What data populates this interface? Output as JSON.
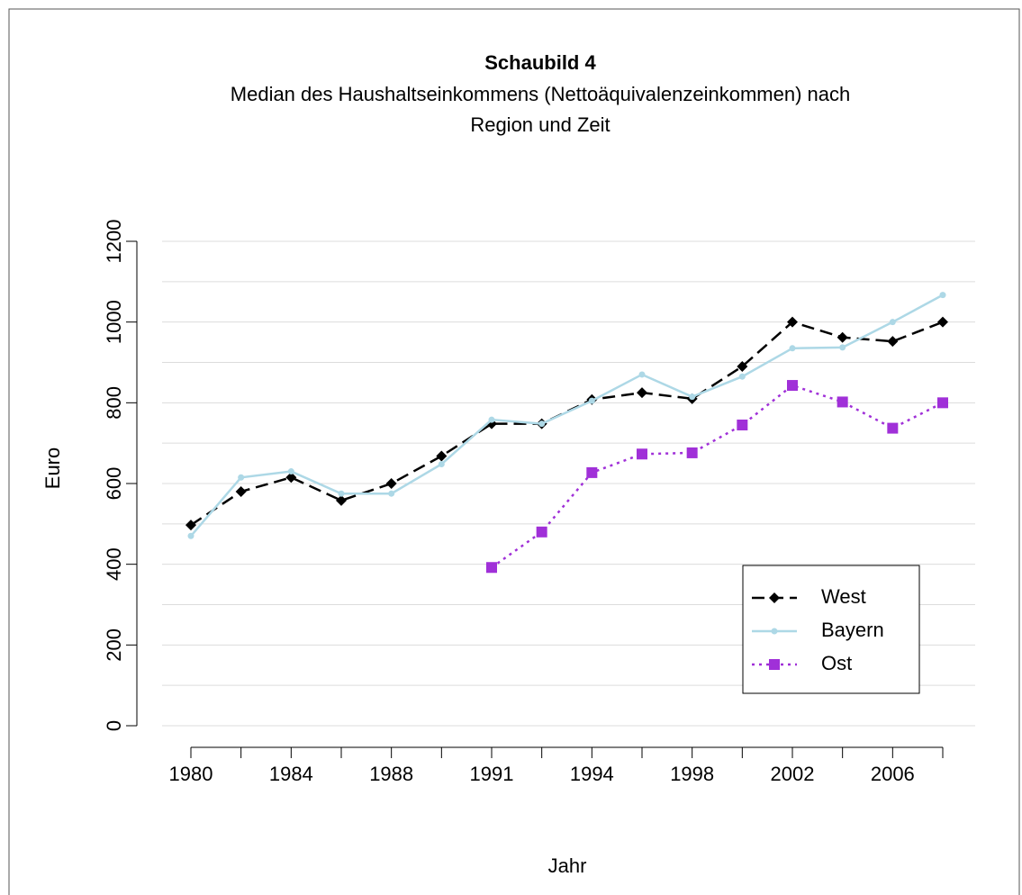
{
  "chart_data": {
    "type": "line",
    "title": "Schaubild 4",
    "subtitle": [
      "Median des Haushaltseinkommens (Nettoäquivalenzeinkommen) nach",
      "Region und Zeit"
    ],
    "x_label": "Jahr",
    "y_label": "Euro",
    "categories": [
      "1980",
      null,
      "1984",
      null,
      "1988",
      null,
      "1991",
      null,
      "1994",
      null,
      "1998",
      null,
      "2002",
      null,
      "2006",
      null
    ],
    "series": [
      {
        "name": "West",
        "color": "#000000",
        "line_style": "dashed",
        "marker": "diamond",
        "values": [
          497,
          580,
          615,
          558,
          600,
          668,
          748,
          748,
          808,
          825,
          810,
          890,
          1000,
          962,
          952,
          1000
        ]
      },
      {
        "name": "Bayern",
        "color": "#add8e6",
        "line_style": "solid",
        "marker": "circle",
        "values": [
          470,
          615,
          630,
          575,
          575,
          648,
          758,
          748,
          805,
          870,
          815,
          865,
          935,
          937,
          1000,
          1067
        ]
      },
      {
        "name": "Ost",
        "color": "#a030d8",
        "line_style": "dotted",
        "marker": "square",
        "values": [
          null,
          null,
          null,
          null,
          null,
          null,
          392,
          480,
          627,
          673,
          676,
          745,
          843,
          802,
          737,
          800
        ]
      }
    ],
    "ylim": [
      0,
      1200
    ],
    "yticks": [
      0,
      200,
      400,
      600,
      800,
      1000,
      1200
    ],
    "minor_yticks": [
      100,
      300,
      500,
      700,
      900,
      1100
    ],
    "grid": true,
    "legend": "bottomright"
  }
}
